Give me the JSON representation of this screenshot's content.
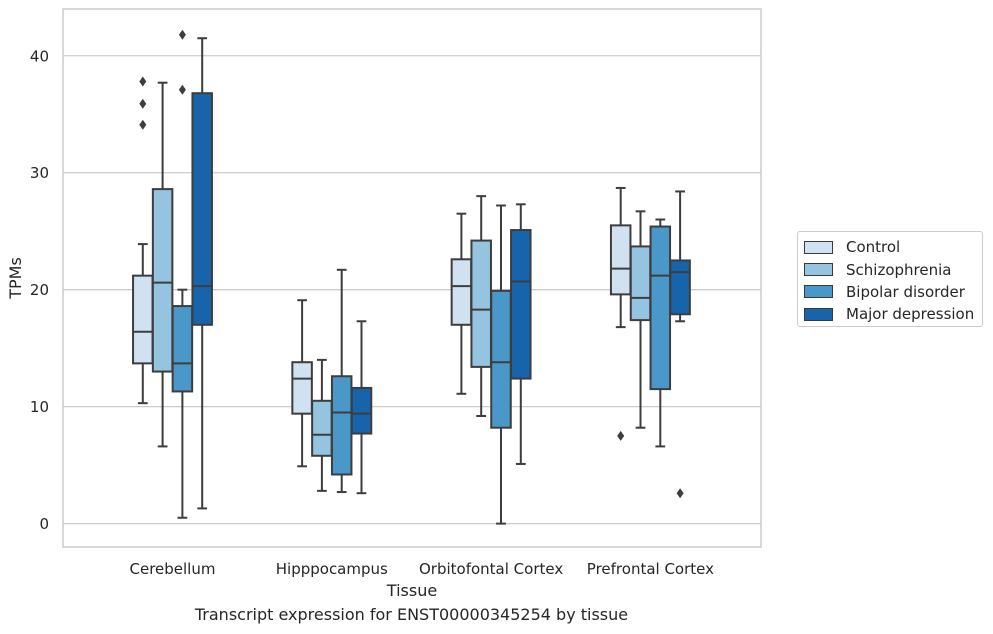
{
  "chart_data": {
    "type": "box",
    "xlabel": "Tissue",
    "ylabel": "TPMs",
    "ylim": [
      -2,
      44
    ],
    "yticks": [
      0,
      10,
      20,
      30,
      40
    ],
    "grid": "horizontal",
    "legend_position": "right",
    "categories": [
      "Cerebellum",
      "Hipppocampus",
      "Orbitofontal Cortex",
      "Prefrontal Cortex"
    ],
    "series": [
      {
        "name": "Control",
        "color": "#d0e1f2",
        "boxes": [
          {
            "min": 10.3,
            "q1": 13.7,
            "median": 16.4,
            "q3": 21.2,
            "max": 23.9,
            "outliers": [
              34.1,
              35.9,
              37.8
            ]
          },
          {
            "min": 4.9,
            "q1": 9.4,
            "median": 12.4,
            "q3": 13.8,
            "max": 19.1,
            "outliers": []
          },
          {
            "min": 11.1,
            "q1": 17.0,
            "median": 20.3,
            "q3": 22.6,
            "max": 26.5,
            "outliers": []
          },
          {
            "min": 16.8,
            "q1": 19.6,
            "median": 21.8,
            "q3": 25.5,
            "max": 28.7,
            "outliers": [
              7.5
            ]
          }
        ]
      },
      {
        "name": "Schizophrenia",
        "color": "#94c4df",
        "boxes": [
          {
            "min": 6.6,
            "q1": 13.0,
            "median": 20.6,
            "q3": 28.6,
            "max": 37.7,
            "outliers": []
          },
          {
            "min": 2.8,
            "q1": 5.8,
            "median": 7.6,
            "q3": 10.5,
            "max": 14.0,
            "outliers": []
          },
          {
            "min": 9.2,
            "q1": 13.4,
            "median": 18.3,
            "q3": 24.2,
            "max": 28.0,
            "outliers": []
          },
          {
            "min": 8.2,
            "q1": 17.4,
            "median": 19.3,
            "q3": 23.7,
            "max": 26.7,
            "outliers": []
          }
        ]
      },
      {
        "name": "Bipolar disorder",
        "color": "#4a98c9",
        "boxes": [
          {
            "min": 0.5,
            "q1": 11.3,
            "median": 13.7,
            "q3": 18.6,
            "max": 20.0,
            "outliers": [
              37.1,
              41.8
            ]
          },
          {
            "min": 2.7,
            "q1": 4.2,
            "median": 9.5,
            "q3": 12.6,
            "max": 21.7,
            "outliers": []
          },
          {
            "min": 0.0,
            "q1": 8.2,
            "median": 13.8,
            "q3": 19.9,
            "max": 27.2,
            "outliers": []
          },
          {
            "min": 6.6,
            "q1": 11.5,
            "median": 21.2,
            "q3": 25.4,
            "max": 26.0,
            "outliers": []
          }
        ]
      },
      {
        "name": "Major depression",
        "color": "#1764ab",
        "boxes": [
          {
            "min": 1.3,
            "q1": 17.0,
            "median": 20.3,
            "q3": 36.8,
            "max": 41.5,
            "outliers": []
          },
          {
            "min": 2.6,
            "q1": 7.7,
            "median": 9.4,
            "q3": 11.6,
            "max": 17.3,
            "outliers": []
          },
          {
            "min": 5.1,
            "q1": 12.4,
            "median": 20.7,
            "q3": 25.1,
            "max": 27.3,
            "outliers": []
          },
          {
            "min": 17.3,
            "q1": 17.9,
            "median": 21.5,
            "q3": 22.5,
            "max": 28.4,
            "outliers": [
              2.6
            ]
          }
        ]
      }
    ]
  },
  "caption": "Transcript expression for ENST00000345254 by tissue"
}
